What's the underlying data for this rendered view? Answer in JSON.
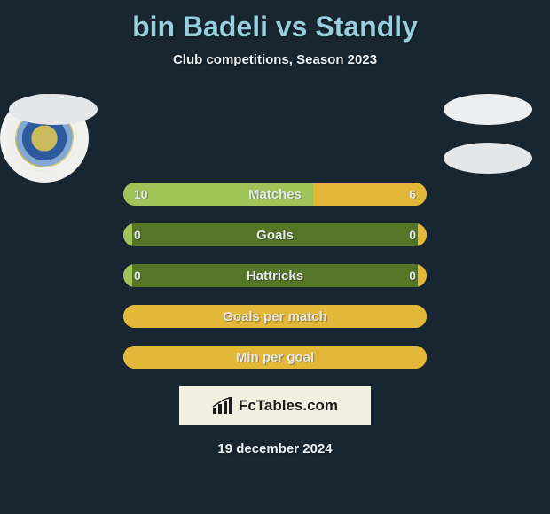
{
  "background_color": "#182632",
  "title": {
    "text": "bin Badeli vs Standly",
    "color": "#97cfdc",
    "fontsize": 32,
    "fontweight": 800
  },
  "subtitle": {
    "text": "Club competitions, Season 2023",
    "color": "#eef2f4",
    "fontsize": 15
  },
  "date": {
    "text": "19 december 2024",
    "color": "#eef2f4",
    "fontsize": 15
  },
  "brand": {
    "text": "FcTables.com",
    "box_bg": "#f2f1e1",
    "text_color": "#1c1c1c"
  },
  "palette": {
    "track_bg": "#567627",
    "left_fill": "#a0c457",
    "right_fill": "#e3b738",
    "label_color": "#e3e8eb"
  },
  "rows": [
    {
      "label": "Matches",
      "left_value": "10",
      "right_value": "6",
      "left_pct": 62.5,
      "right_pct": 37.5,
      "left_color": "#a0c457",
      "right_color": "#e3b738",
      "track_bg": "#567627"
    },
    {
      "label": "Goals",
      "left_value": "0",
      "right_value": "0",
      "left_pct": 3,
      "right_pct": 3,
      "left_color": "#a0c457",
      "right_color": "#e3b738",
      "track_bg": "#567627"
    },
    {
      "label": "Hattricks",
      "left_value": "0",
      "right_value": "0",
      "left_pct": 3,
      "right_pct": 3,
      "left_color": "#a0c457",
      "right_color": "#e3b738",
      "track_bg": "#567627"
    },
    {
      "label": "Goals per match",
      "left_value": "",
      "right_value": "",
      "left_pct": 0,
      "right_pct": 100,
      "left_color": "#a0c457",
      "right_color": "#e3b738",
      "track_bg": "#e3b738"
    },
    {
      "label": "Min per goal",
      "left_value": "",
      "right_value": "",
      "left_pct": 0,
      "right_pct": 100,
      "left_color": "#a0c457",
      "right_color": "#e3b738",
      "track_bg": "#e3b738"
    }
  ]
}
